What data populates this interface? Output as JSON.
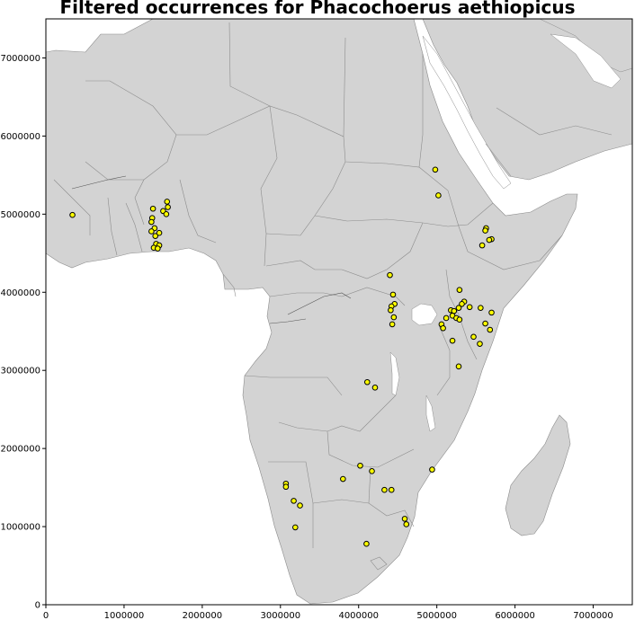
{
  "title": "Filtered occurrences for Phacochoerus aethiopicus",
  "colors": {
    "land": "#d3d3d3",
    "border": "#8c8c8c",
    "water": "#ffffff",
    "point_fill": "#ffff00",
    "point_edge": "#000000"
  },
  "axes": {
    "x": {
      "range": [
        0,
        7500000
      ],
      "ticks": [
        0,
        1000000,
        2000000,
        3000000,
        4000000,
        5000000,
        6000000,
        7000000
      ],
      "tick_labels": [
        "0",
        "1000000",
        "2000000",
        "3000000",
        "4000000",
        "5000000",
        "6000000",
        "7000000"
      ]
    },
    "y": {
      "range": [
        0,
        7500000
      ],
      "ticks": [
        0,
        1000000,
        2000000,
        3000000,
        4000000,
        5000000,
        6000000,
        7000000
      ],
      "tick_labels": [
        "0",
        "1000000",
        "2000000",
        "3000000",
        "4000000",
        "5000000",
        "6000000",
        "7000000"
      ]
    }
  },
  "chart_data": {
    "type": "scatter",
    "title": "Filtered occurrences for Phacochoerus aethiopicus",
    "xlim": [
      0,
      7500000
    ],
    "ylim": [
      0,
      7500000
    ],
    "points": [
      [
        340000,
        4990000
      ],
      [
        1370000,
        5070000
      ],
      [
        1360000,
        4950000
      ],
      [
        1350000,
        4900000
      ],
      [
        1390000,
        4820000
      ],
      [
        1350000,
        4780000
      ],
      [
        1400000,
        4720000
      ],
      [
        1450000,
        4760000
      ],
      [
        1410000,
        4620000
      ],
      [
        1450000,
        4600000
      ],
      [
        1380000,
        4570000
      ],
      [
        1430000,
        4560000
      ],
      [
        1550000,
        5160000
      ],
      [
        1560000,
        5090000
      ],
      [
        1500000,
        5040000
      ],
      [
        1540000,
        5000000
      ],
      [
        4980000,
        5570000
      ],
      [
        5020000,
        5240000
      ],
      [
        5630000,
        4820000
      ],
      [
        5620000,
        4790000
      ],
      [
        5700000,
        4680000
      ],
      [
        5670000,
        4670000
      ],
      [
        5580000,
        4600000
      ],
      [
        4400000,
        4220000
      ],
      [
        5290000,
        4030000
      ],
      [
        4440000,
        3970000
      ],
      [
        4460000,
        3850000
      ],
      [
        4420000,
        3820000
      ],
      [
        4410000,
        3770000
      ],
      [
        4450000,
        3680000
      ],
      [
        4430000,
        3590000
      ],
      [
        5350000,
        3880000
      ],
      [
        5320000,
        3850000
      ],
      [
        5280000,
        3800000
      ],
      [
        5180000,
        3770000
      ],
      [
        5220000,
        3760000
      ],
      [
        5200000,
        3700000
      ],
      [
        5250000,
        3670000
      ],
      [
        5290000,
        3650000
      ],
      [
        5120000,
        3670000
      ],
      [
        5420000,
        3810000
      ],
      [
        5560000,
        3800000
      ],
      [
        5700000,
        3740000
      ],
      [
        5620000,
        3600000
      ],
      [
        5060000,
        3590000
      ],
      [
        5080000,
        3540000
      ],
      [
        5680000,
        3520000
      ],
      [
        5470000,
        3430000
      ],
      [
        5200000,
        3380000
      ],
      [
        5550000,
        3340000
      ],
      [
        5280000,
        3050000
      ],
      [
        4110000,
        2850000
      ],
      [
        4210000,
        2780000
      ],
      [
        4020000,
        1780000
      ],
      [
        4170000,
        1710000
      ],
      [
        4940000,
        1730000
      ],
      [
        3800000,
        1610000
      ],
      [
        4330000,
        1470000
      ],
      [
        4420000,
        1470000
      ],
      [
        3070000,
        1550000
      ],
      [
        3070000,
        1510000
      ],
      [
        3170000,
        1330000
      ],
      [
        3250000,
        1270000
      ],
      [
        4590000,
        1100000
      ],
      [
        4610000,
        1030000
      ],
      [
        3190000,
        990000
      ],
      [
        4100000,
        780000
      ]
    ]
  }
}
